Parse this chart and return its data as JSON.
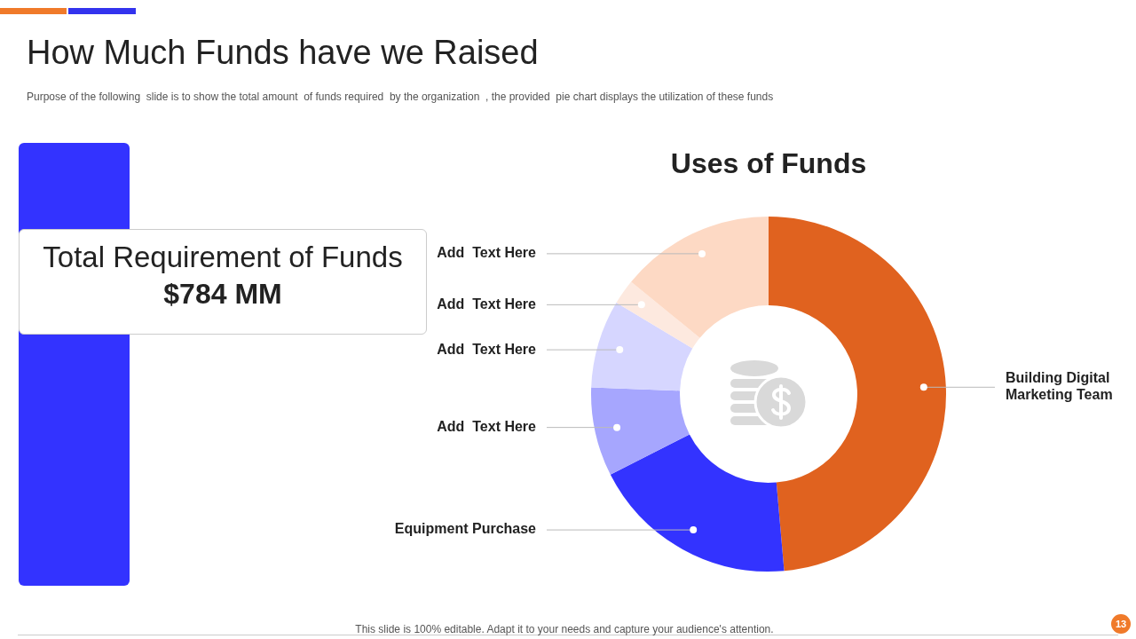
{
  "chart_data": [
    {
      "type": "other",
      "title": "How Much Funds have we Raised",
      "subtitle": "Purpose of the following  slide is to show the total amount  of funds required  by the organization  , the provided  pie chart displays the utilization of these funds",
      "annotations": [
        "Total Requirement of Funds",
        "$784 MM",
        "This slide is 100% editable. Adapt it to your needs and capture your audience's attention.",
        "13"
      ]
    },
    {
      "type": "donut",
      "title": "Uses of Funds",
      "categories": [
        "Building Digital Marketing Team",
        "Equipment Purchase",
        "Add  Text Here",
        "Add  Text Here",
        "Add  Text Here",
        "Add  Text Here"
      ],
      "values": [
        48.6,
        18.9,
        8.1,
        8.0,
        2.3,
        14.1
      ],
      "colors": [
        "#e0621f",
        "#3333ff",
        "#a6a6fe",
        "#d6d6ff",
        "#fde9df",
        "#fdd9c4"
      ],
      "legend": false
    }
  ]
}
